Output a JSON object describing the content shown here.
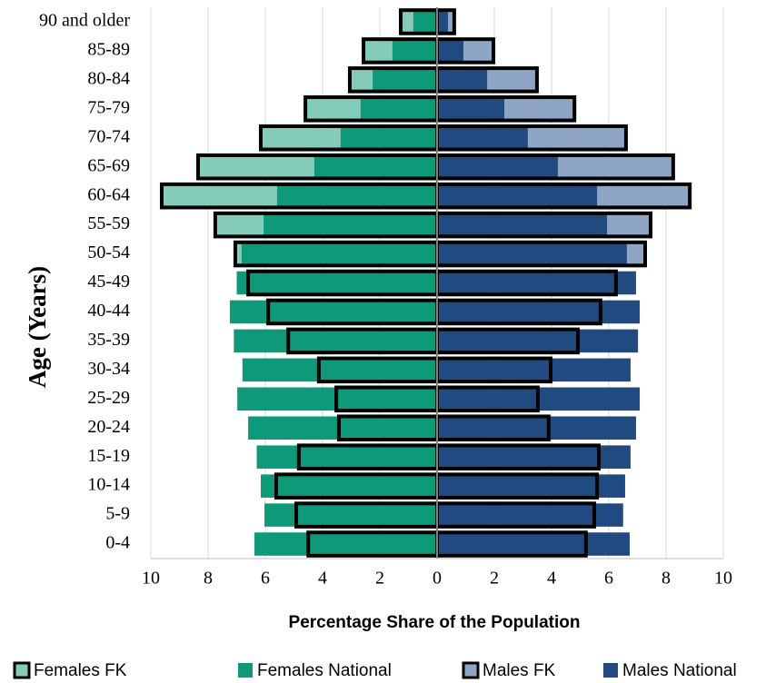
{
  "chart_data": {
    "type": "pyramid",
    "xlabel": "Percentage Share of the Population",
    "ylabel": "Age (Years)",
    "categories": [
      "0-4",
      "5-9",
      "10-14",
      "15-19",
      "20-24",
      "25-29",
      "30-34",
      "35-39",
      "40-44",
      "45-49",
      "50-54",
      "55-59",
      "60-64",
      "65-69",
      "70-74",
      "75-79",
      "80-84",
      "85-89",
      "90 and older"
    ],
    "series": [
      {
        "name": "Females FK",
        "color": "#84ccb9",
        "outline": true,
        "values": [
          -4.5,
          -4.92,
          -5.62,
          -4.83,
          -3.43,
          -3.52,
          -4.13,
          -5.2,
          -5.9,
          -6.6,
          -7.05,
          -7.75,
          -9.62,
          -8.35,
          -6.16,
          -4.6,
          -3.05,
          -2.57,
          -1.27
        ]
      },
      {
        "name": "Females National",
        "color": "#0e9a78",
        "outline": false,
        "values": [
          -6.38,
          -6.03,
          -6.16,
          -6.3,
          -6.6,
          -6.98,
          -6.8,
          -7.1,
          -7.24,
          -7.0,
          -6.83,
          -6.06,
          -5.59,
          -4.29,
          -3.37,
          -2.67,
          -2.25,
          -1.56,
          -0.83
        ]
      },
      {
        "name": "Males FK",
        "color": "#8fa5c6",
        "outline": true,
        "values": [
          5.2,
          5.49,
          5.59,
          5.65,
          3.9,
          3.52,
          3.97,
          4.92,
          5.71,
          6.25,
          7.27,
          7.46,
          8.83,
          8.25,
          6.6,
          4.8,
          3.49,
          1.97,
          0.6
        ]
      },
      {
        "name": "Males National",
        "color": "#214a80",
        "outline": false,
        "values": [
          6.73,
          6.5,
          6.57,
          6.76,
          6.95,
          7.08,
          6.76,
          7.02,
          7.08,
          6.95,
          6.63,
          5.94,
          5.59,
          4.22,
          3.17,
          2.35,
          1.75,
          0.92,
          0.38
        ]
      }
    ],
    "xlim": [
      -10,
      10
    ],
    "xticks": [
      {
        "value": -10,
        "label": "10"
      },
      {
        "value": -8,
        "label": "8"
      },
      {
        "value": -6,
        "label": "6"
      },
      {
        "value": -4,
        "label": "4"
      },
      {
        "value": -2,
        "label": "2"
      },
      0,
      2,
      4,
      6,
      8,
      10
    ],
    "grid": true
  }
}
